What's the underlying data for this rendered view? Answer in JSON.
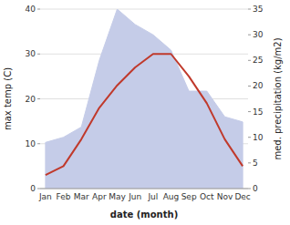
{
  "chart_data": {
    "type": "line",
    "categories": [
      "Jan",
      "Feb",
      "Mar",
      "Apr",
      "May",
      "Jun",
      "Jul",
      "Aug",
      "Sep",
      "Oct",
      "Nov",
      "Dec"
    ],
    "xlabel": "date (month)",
    "ylabel": "max temp (C)",
    "y2label": "med. precipitation (kg/m2)",
    "series": [
      {
        "type": "area",
        "axis": "y2",
        "color": "#c5cce8",
        "values": [
          9,
          10,
          12,
          25,
          35,
          32,
          30,
          27,
          19,
          19,
          14,
          13
        ]
      },
      {
        "type": "line",
        "color": "#c0392b",
        "values": [
          3,
          5,
          11,
          18,
          23,
          27,
          30,
          30,
          25,
          19,
          11,
          5
        ]
      }
    ],
    "ylim": [
      0,
      40
    ],
    "yticks": [
      0,
      10,
      20,
      30,
      40
    ],
    "y2lim": [
      0,
      35
    ],
    "y2ticks": [
      0,
      5,
      10,
      15,
      20,
      25,
      30,
      35
    ],
    "grid": true
  }
}
